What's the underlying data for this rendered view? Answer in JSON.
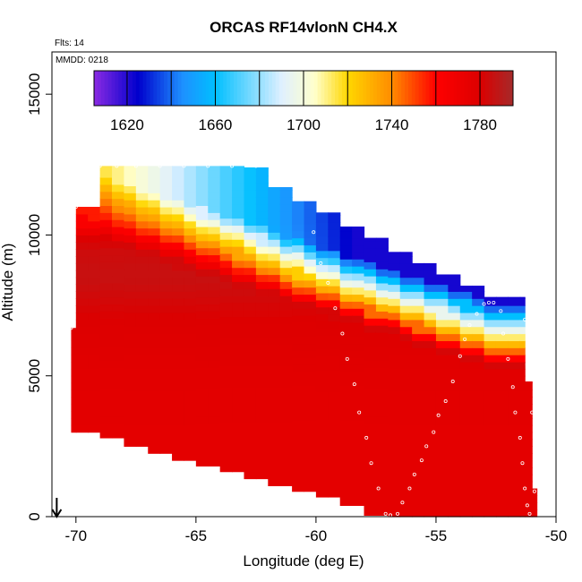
{
  "chart_data": {
    "type": "heatmap",
    "title": "ORCAS RF14vlonN CH4.X",
    "subtitle": "Flts: 14",
    "inset_label": "MMDD: 0218",
    "xlabel": "Longitude (deg E)",
    "ylabel": "Altitude (m)",
    "xlim": [
      -71.0,
      -50.0
    ],
    "ylim": [
      0,
      16500
    ],
    "x_ticks": [
      -70,
      -65,
      -60,
      -55,
      -50
    ],
    "x_tick_labels": [
      "-70",
      "-65",
      "-60",
      "-55",
      "-50"
    ],
    "y_ticks": [
      0,
      5000,
      10000,
      15000
    ],
    "y_tick_labels": [
      "0",
      "5000",
      "10000",
      "15000"
    ],
    "grid": false,
    "colorbar": {
      "vmin": 1605,
      "vmax": 1795,
      "ticks": [
        1620,
        1660,
        1700,
        1740,
        1780
      ],
      "tick_labels": [
        "1620",
        "1660",
        "1700",
        "1740",
        "1780"
      ],
      "stops": [
        {
          "value": 1605,
          "color": "#8a2be2"
        },
        {
          "value": 1625,
          "color": "#0000cd"
        },
        {
          "value": 1645,
          "color": "#1e90ff"
        },
        {
          "value": 1660,
          "color": "#00bfff"
        },
        {
          "value": 1690,
          "color": "#dff0ff"
        },
        {
          "value": 1705,
          "color": "#ffffcc"
        },
        {
          "value": 1720,
          "color": "#ffd700"
        },
        {
          "value": 1740,
          "color": "#ff8c00"
        },
        {
          "value": 1760,
          "color": "#ff0000"
        },
        {
          "value": 1780,
          "color": "#dd0000"
        },
        {
          "value": 1795,
          "color": "#a52a2a"
        }
      ]
    },
    "field": {
      "column_extents": [
        {
          "lon_min": -70.2,
          "lon_max": -70.0,
          "alt_min": 3000,
          "alt_max": 6700
        },
        {
          "lon_min": -70.0,
          "lon_max": -69.0,
          "alt_min": 3000,
          "alt_max": 11000
        },
        {
          "lon_min": -69.0,
          "lon_max": -68.0,
          "alt_min": 2800,
          "alt_max": 12450
        },
        {
          "lon_min": -68.0,
          "lon_max": -67.0,
          "alt_min": 2500,
          "alt_max": 12450
        },
        {
          "lon_min": -67.0,
          "lon_max": -66.0,
          "alt_min": 2250,
          "alt_max": 12450
        },
        {
          "lon_min": -66.0,
          "lon_max": -65.0,
          "alt_min": 2000,
          "alt_max": 12450
        },
        {
          "lon_min": -65.0,
          "lon_max": -64.0,
          "alt_min": 1800,
          "alt_max": 12450
        },
        {
          "lon_min": -64.0,
          "lon_max": -63.0,
          "alt_min": 1600,
          "alt_max": 12450
        },
        {
          "lon_min": -63.0,
          "lon_max": -62.0,
          "alt_min": 1350,
          "alt_max": 12400
        },
        {
          "lon_min": -62.0,
          "lon_max": -61.0,
          "alt_min": 1100,
          "alt_max": 11700
        },
        {
          "lon_min": -61.0,
          "lon_max": -60.0,
          "alt_min": 900,
          "alt_max": 11200
        },
        {
          "lon_min": -60.0,
          "lon_max": -59.0,
          "alt_min": 700,
          "alt_max": 10800
        },
        {
          "lon_min": -59.0,
          "lon_max": -58.0,
          "alt_min": 400,
          "alt_max": 10300
        },
        {
          "lon_min": -58.0,
          "lon_max": -57.0,
          "alt_min": 50,
          "alt_max": 9900
        },
        {
          "lon_min": -57.0,
          "lon_max": -56.0,
          "alt_min": 0,
          "alt_max": 9400
        },
        {
          "lon_min": -56.0,
          "lon_max": -55.0,
          "alt_min": 0,
          "alt_max": 9000
        },
        {
          "lon_min": -55.0,
          "lon_max": -54.0,
          "alt_min": 0,
          "alt_max": 8600
        },
        {
          "lon_min": -54.0,
          "lon_max": -53.0,
          "alt_min": 0,
          "alt_max": 8200
        },
        {
          "lon_min": -53.0,
          "lon_max": -52.0,
          "alt_min": 0,
          "alt_max": 7800
        },
        {
          "lon_min": -52.0,
          "lon_max": -51.3,
          "alt_min": 0,
          "alt_max": 7800
        },
        {
          "lon_min": -51.3,
          "lon_max": -51.0,
          "alt_min": 0,
          "alt_max": 4800
        },
        {
          "lon_min": -51.0,
          "lon_max": -50.8,
          "alt_min": 0,
          "alt_max": 1000
        }
      ],
      "ch4_profile": [
        {
          "alt": 0,
          "value": 1776
        },
        {
          "alt": 3000,
          "value": 1776
        },
        {
          "alt": 5000,
          "value": 1777
        },
        {
          "alt": 7000,
          "value": 1780
        },
        {
          "alt": 8500,
          "value": 1786
        },
        {
          "alt": 9500,
          "value": 1784
        },
        {
          "alt": 10500,
          "value": 1772
        }
      ],
      "tropopause_gradient": {
        "top_west": 12450,
        "top_east": 7800,
        "lon_west": -69.3,
        "lon_east": -52.5,
        "depth_m": 2600,
        "values": [
          1782,
          1760,
          1745,
          1728,
          1712,
          1695,
          1680,
          1660,
          1640,
          1622
        ]
      }
    },
    "flight_track": [
      {
        "lon": -69.8,
        "alt": 12450
      },
      {
        "lon": -69.5,
        "alt": 12450
      },
      {
        "lon": -69.0,
        "alt": 12450
      },
      {
        "lon": -68.3,
        "alt": 12450
      },
      {
        "lon": -67.5,
        "alt": 12450
      },
      {
        "lon": -66.5,
        "alt": 12450
      },
      {
        "lon": -65.5,
        "alt": 12450
      },
      {
        "lon": -64.5,
        "alt": 12450
      },
      {
        "lon": -63.5,
        "alt": 12450
      },
      {
        "lon": -62.5,
        "alt": 12450
      },
      {
        "lon": -61.8,
        "alt": 12450
      },
      {
        "lon": -61.4,
        "alt": 12050
      },
      {
        "lon": -70.0,
        "alt": 11000
      },
      {
        "lon": -70.1,
        "alt": 9000
      },
      {
        "lon": -70.2,
        "alt": 6700
      },
      {
        "lon": -70.3,
        "alt": 4800
      },
      {
        "lon": -70.3,
        "alt": 3050
      },
      {
        "lon": -60.1,
        "alt": 10100
      },
      {
        "lon": -59.8,
        "alt": 9000
      },
      {
        "lon": -59.5,
        "alt": 8300
      },
      {
        "lon": -59.2,
        "alt": 7400
      },
      {
        "lon": -58.9,
        "alt": 6500
      },
      {
        "lon": -58.7,
        "alt": 5600
      },
      {
        "lon": -58.4,
        "alt": 4700
      },
      {
        "lon": -58.2,
        "alt": 3700
      },
      {
        "lon": -57.9,
        "alt": 2800
      },
      {
        "lon": -57.7,
        "alt": 1900
      },
      {
        "lon": -57.4,
        "alt": 1000
      },
      {
        "lon": -57.1,
        "alt": 100
      },
      {
        "lon": -56.9,
        "alt": 50
      },
      {
        "lon": -56.6,
        "alt": 100
      },
      {
        "lon": -56.4,
        "alt": 500
      },
      {
        "lon": -56.1,
        "alt": 1000
      },
      {
        "lon": -55.9,
        "alt": 1500
      },
      {
        "lon": -55.6,
        "alt": 2000
      },
      {
        "lon": -55.4,
        "alt": 2500
      },
      {
        "lon": -55.1,
        "alt": 3000
      },
      {
        "lon": -54.9,
        "alt": 3600
      },
      {
        "lon": -54.6,
        "alt": 4100
      },
      {
        "lon": -54.3,
        "alt": 4800
      },
      {
        "lon": -54.0,
        "alt": 5700
      },
      {
        "lon": -53.8,
        "alt": 6300
      },
      {
        "lon": -53.6,
        "alt": 6800
      },
      {
        "lon": -53.3,
        "alt": 7200
      },
      {
        "lon": -53.0,
        "alt": 7550
      },
      {
        "lon": -52.8,
        "alt": 7600
      },
      {
        "lon": -52.6,
        "alt": 7600
      },
      {
        "lon": -52.3,
        "alt": 7300
      },
      {
        "lon": -52.2,
        "alt": 6500
      },
      {
        "lon": -52.0,
        "alt": 5600
      },
      {
        "lon": -51.8,
        "alt": 4600
      },
      {
        "lon": -51.7,
        "alt": 3700
      },
      {
        "lon": -51.5,
        "alt": 2800
      },
      {
        "lon": -51.4,
        "alt": 1900
      },
      {
        "lon": -51.3,
        "alt": 1000
      },
      {
        "lon": -51.2,
        "alt": 400
      },
      {
        "lon": -51.1,
        "alt": 100
      },
      {
        "lon": -51.3,
        "alt": 7000
      },
      {
        "lon": -51.2,
        "alt": 5400
      },
      {
        "lon": -51.0,
        "alt": 3700
      },
      {
        "lon": -50.9,
        "alt": 2000
      },
      {
        "lon": -50.9,
        "alt": 900
      }
    ],
    "arrow_lon": -70.8
  }
}
